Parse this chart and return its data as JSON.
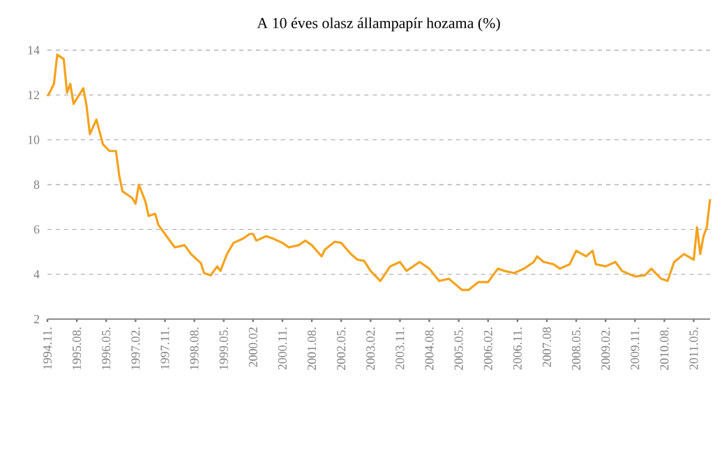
{
  "chart_data": {
    "type": "line",
    "title": "A 10 éves olasz állampapír hozama (%)",
    "x": [
      "1994-11",
      "1994-12",
      "1995-01",
      "1995-02",
      "1995-04",
      "1995-05",
      "1995-06",
      "1995-07",
      "1995-10",
      "1995-11",
      "1995-12",
      "1996-02",
      "1996-04",
      "1996-06",
      "1996-08",
      "1996-09",
      "1996-10",
      "1997-01",
      "1997-02",
      "1997-03",
      "1997-05",
      "1997-06",
      "1997-08",
      "1997-09",
      "1997-12",
      "1998-02",
      "1998-05",
      "1998-07",
      "1998-10",
      "1998-11",
      "1999-01",
      "1999-03",
      "1999-04",
      "1999-06",
      "1999-08",
      "1999-11",
      "2000-01",
      "2000-02",
      "2000-03",
      "2000-06",
      "2000-08",
      "2000-11",
      "2001-01",
      "2001-04",
      "2001-06",
      "2001-08",
      "2001-11",
      "2001-12",
      "2002-03",
      "2002-05",
      "2002-08",
      "2002-10",
      "2002-12",
      "2003-02",
      "2003-05",
      "2003-08",
      "2003-11",
      "2004-01",
      "2004-05",
      "2004-08",
      "2004-11",
      "2005-02",
      "2005-06",
      "2005-08",
      "2005-11",
      "2006-02",
      "2006-05",
      "2006-07",
      "2006-10",
      "2007-01",
      "2007-04",
      "2007-05",
      "2007-07",
      "2007-10",
      "2007-12",
      "2008-03",
      "2008-05",
      "2008-08",
      "2008-10",
      "2008-11",
      "2009-02",
      "2009-05",
      "2009-07",
      "2009-11",
      "2010-02",
      "2010-04",
      "2010-07",
      "2010-09",
      "2010-11",
      "2011-02",
      "2011-05",
      "2011-06",
      "2011-07",
      "2011-08",
      "2011-09",
      "2011-10"
    ],
    "series": [
      {
        "color": "#f5a21b",
        "values": [
          11.95,
          12.2,
          12.5,
          13.8,
          13.6,
          12.1,
          12.5,
          11.6,
          12.3,
          11.5,
          10.25,
          10.9,
          9.8,
          9.5,
          9.5,
          8.4,
          7.7,
          7.4,
          7.15,
          8.0,
          7.25,
          6.6,
          6.7,
          6.2,
          5.6,
          5.2,
          5.3,
          4.9,
          4.5,
          4.05,
          3.95,
          4.35,
          4.15,
          4.9,
          5.4,
          5.6,
          5.8,
          5.8,
          5.5,
          5.7,
          5.6,
          5.4,
          5.2,
          5.3,
          5.5,
          5.3,
          4.8,
          5.1,
          5.45,
          5.4,
          4.9,
          4.65,
          4.6,
          4.15,
          3.7,
          4.35,
          4.55,
          4.15,
          4.55,
          4.25,
          3.7,
          3.8,
          3.3,
          3.3,
          3.65,
          3.65,
          4.25,
          4.15,
          4.05,
          4.25,
          4.55,
          4.8,
          4.55,
          4.45,
          4.25,
          4.45,
          5.05,
          4.8,
          5.05,
          4.45,
          4.35,
          4.55,
          4.15,
          3.9,
          3.95,
          4.25,
          3.8,
          3.7,
          4.55,
          4.9,
          4.65,
          6.1,
          4.9,
          5.7,
          6.1,
          7.35
        ]
      }
    ],
    "xlim": [
      "1994-11",
      "2011-10"
    ],
    "xticks": [
      {
        "value": "1994-11",
        "label": "1994.11."
      },
      {
        "value": "1995-08",
        "label": "1995.08."
      },
      {
        "value": "1996-05",
        "label": "1996.05."
      },
      {
        "value": "1997-02",
        "label": "1997.02."
      },
      {
        "value": "1997-11",
        "label": "1997.11."
      },
      {
        "value": "1998-08",
        "label": "1998.08."
      },
      {
        "value": "1999-05",
        "label": "1999.05."
      },
      {
        "value": "2000-02",
        "label": "2000.02"
      },
      {
        "value": "2000-11",
        "label": "2000.11."
      },
      {
        "value": "2001-08",
        "label": "2001.08."
      },
      {
        "value": "2002-05",
        "label": "2002.05."
      },
      {
        "value": "2003-02",
        "label": "2003.02."
      },
      {
        "value": "2003-11",
        "label": "2003.11."
      },
      {
        "value": "2004-08",
        "label": "2004.08."
      },
      {
        "value": "2005-05",
        "label": "2005.05."
      },
      {
        "value": "2006-02",
        "label": "2006.02."
      },
      {
        "value": "2006-11",
        "label": "2006.11."
      },
      {
        "value": "2007-08",
        "label": "2007.08"
      },
      {
        "value": "2008-05",
        "label": "2008.05."
      },
      {
        "value": "2009-02",
        "label": "2009.02."
      },
      {
        "value": "2009-11",
        "label": "2009.11."
      },
      {
        "value": "2010-08",
        "label": "2010.08."
      },
      {
        "value": "2011-05",
        "label": "2011.05."
      }
    ],
    "ylim": [
      2,
      14
    ],
    "yticks": [
      2,
      4,
      6,
      8,
      10,
      12,
      14
    ],
    "grid": "y",
    "legend": false,
    "marker": "none",
    "line_style": "solid"
  }
}
